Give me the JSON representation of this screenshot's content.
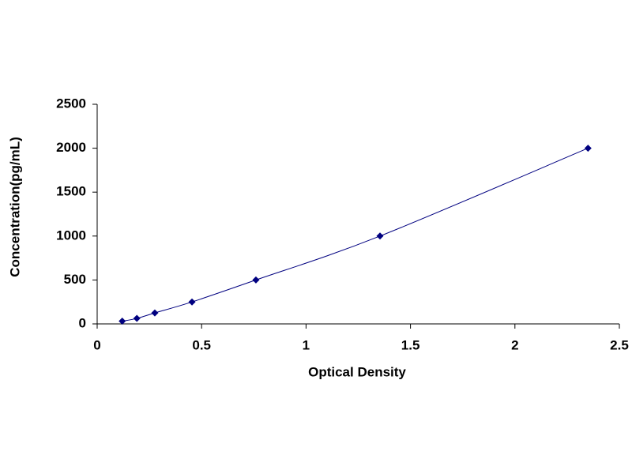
{
  "chart_data": {
    "type": "line",
    "x_label": "Optical Density",
    "y_label": "Concentration(pg/mL)",
    "x": [
      0.12,
      0.19,
      0.276,
      0.454,
      0.76,
      1.354,
      2.35
    ],
    "values": [
      31.25,
      62.5,
      125,
      250,
      500,
      1000,
      2000
    ],
    "color": "#000080",
    "xlim": [
      0,
      2.5
    ],
    "xticks": [
      0,
      0.5,
      1,
      1.5,
      2,
      2.5
    ],
    "ylim": [
      0,
      2500
    ],
    "yticks": [
      0,
      500,
      1000,
      1500,
      2000,
      2500
    ],
    "grid": false
  }
}
